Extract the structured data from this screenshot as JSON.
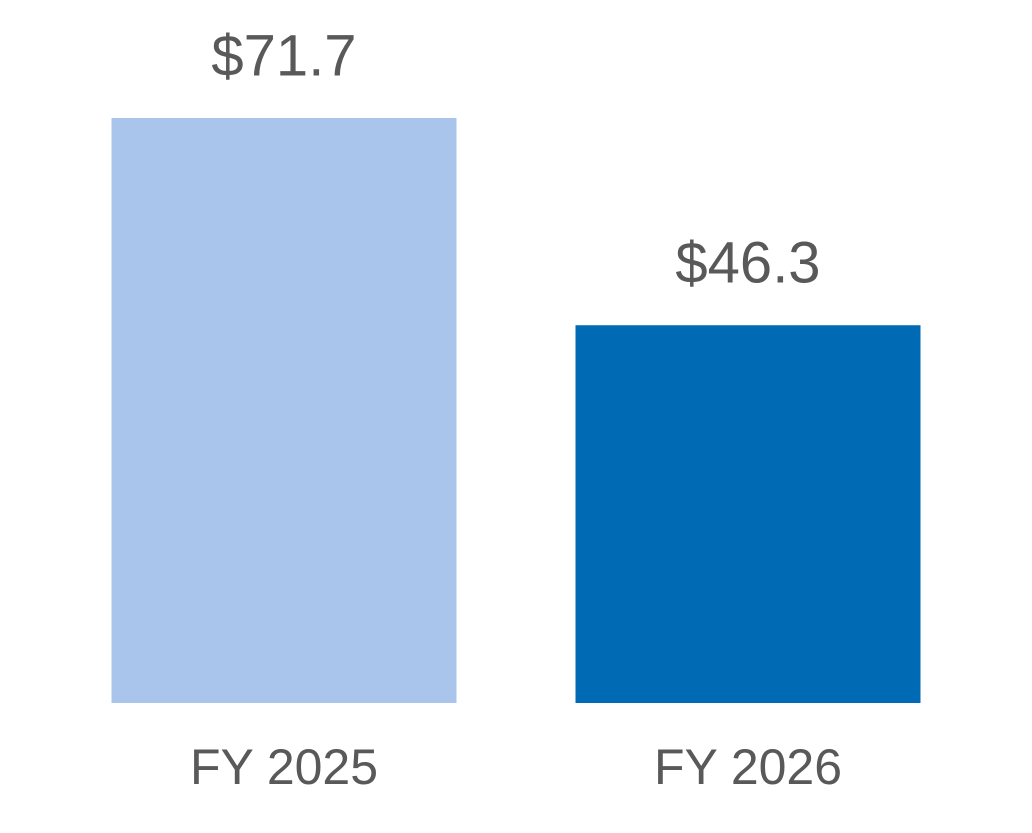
{
  "chart_data": {
    "type": "bar",
    "categories": [
      "FY 2025",
      "FY 2026"
    ],
    "values": [
      71.7,
      46.3
    ],
    "value_labels": [
      "$71.7",
      "$46.3"
    ],
    "colors": [
      "#a9c5ec",
      "#006ab4"
    ],
    "ylim": [
      0,
      71.7
    ]
  }
}
